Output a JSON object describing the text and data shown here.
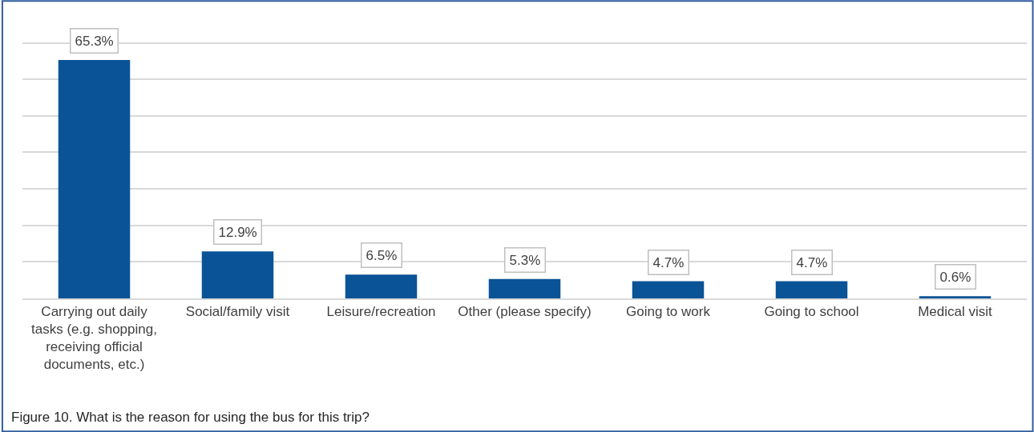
{
  "chart_data": {
    "type": "bar",
    "categories": [
      "Carrying out daily tasks (e.g. shopping, receiving official documents, etc.)",
      "Social/family visit",
      "Leisure/recreation",
      "Other (please specify)",
      "Going to work",
      "Going to school",
      "Medical visit"
    ],
    "values": [
      65.3,
      12.9,
      6.5,
      5.3,
      4.7,
      4.7,
      0.6
    ],
    "value_labels": [
      "65.3%",
      "12.9%",
      "6.5%",
      "5.3%",
      "4.7%",
      "4.7%",
      "0.6%"
    ],
    "color": "#0a5396",
    "tick_labels": "x",
    "grid": "y",
    "legend": false,
    "annotations": [
      "Figure 10. What is the reason for using the bus for this trip?"
    ]
  }
}
